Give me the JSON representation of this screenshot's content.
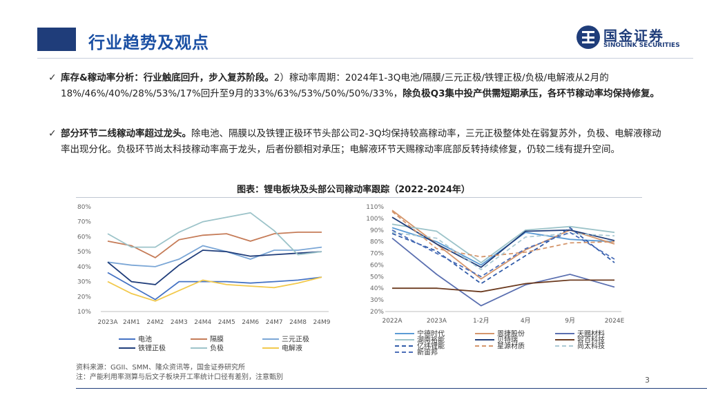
{
  "header": {
    "title": "行业趋势及观点"
  },
  "logo": {
    "cn": "国金证券",
    "en": "SINOLINK SECURITIES"
  },
  "bullets": [
    {
      "bold_lead": "库存&稼动率分析：行业触底回升，步入复苏阶段。",
      "body": "2）稼动率周期：2024年1-3Q电池/隔膜/三元正极/铁锂正极/负极/电解液从2月的18%/46%/40%/28%/53%/17%回升至9月的33%/63%/53%/50%/50%/33%，",
      "bold_tail": "除负极Q3集中投产供需短期承压，各环节稼动率均保持修复。"
    },
    {
      "bold_lead": "部分环节二线稼动率超过龙头。",
      "body": "除电池、隔膜以及铁锂正极环节头部公司2-3Q均保持较高稼动率，三元正极整体处在弱复苏外，负极、电解液稼动率出现分化。负极环节尚太科技稼动率高于龙头，后者份额相对承压；电解液环节天赐稼动率底部反转持续修复，仍较二线有提升空间。",
      "bold_tail": ""
    }
  ],
  "figure": {
    "title": "图表：锂电板块及头部公司稼动率跟踪（2022-2024年）"
  },
  "chart_data": [
    {
      "type": "line",
      "categories": [
        "2023A",
        "24M1",
        "24M2",
        "24M3",
        "24M4",
        "24M5",
        "24M6",
        "24M7",
        "24M8",
        "24M9"
      ],
      "ylim": [
        10,
        80
      ],
      "yticks": [
        "10%",
        "20%",
        "30%",
        "40%",
        "50%",
        "60%",
        "70%",
        "80%"
      ],
      "series": [
        {
          "name": "电池",
          "color": "#4472c4",
          "values": [
            36,
            27,
            18,
            30,
            30,
            30,
            29,
            30,
            31,
            33
          ]
        },
        {
          "name": "隔膜",
          "color": "#c57b57",
          "values": [
            57,
            54,
            46,
            58,
            61,
            62,
            57,
            62,
            63,
            63
          ]
        },
        {
          "name": "三元正极",
          "color": "#7aa6d6",
          "values": [
            43,
            41,
            40,
            45,
            54,
            50,
            45,
            51,
            51,
            53
          ]
        },
        {
          "name": "铁锂正极",
          "color": "#1f3d7a",
          "values": [
            43,
            30,
            28,
            41,
            51,
            50,
            47,
            48,
            49,
            50
          ]
        },
        {
          "name": "负极",
          "color": "#9cc3c9",
          "values": [
            62,
            53,
            53,
            63,
            70,
            73,
            76,
            64,
            48,
            50
          ]
        },
        {
          "name": "电解液",
          "color": "#f2c94c",
          "values": [
            30,
            22,
            17,
            24,
            31,
            28,
            27,
            26,
            29,
            33
          ]
        }
      ]
    },
    {
      "type": "line",
      "categories": [
        "2022A",
        "2023A",
        "1-2月",
        "4月",
        "9月",
        "2024E"
      ],
      "ylim": [
        20,
        110
      ],
      "yticks": [
        "20%",
        "30%",
        "40%",
        "50%",
        "60%",
        "70%",
        "80%",
        "90%",
        "100%",
        "110%"
      ],
      "series": [
        {
          "name": "宁德时代",
          "color": "#5b9bd5",
          "dash": "",
          "values": [
            92,
            80,
            60,
            88,
            82,
            80
          ]
        },
        {
          "name": "恩捷股份",
          "color": "#d4956b",
          "dash": "",
          "values": [
            107,
            78,
            48,
            73,
            90,
            78
          ]
        },
        {
          "name": "天赐材料",
          "color": "#5a6fb0",
          "dash": "",
          "values": [
            83,
            52,
            25,
            43,
            52,
            41
          ]
        },
        {
          "name": "湖南裕能",
          "color": "#9cc3c9",
          "dash": "",
          "values": [
            95,
            89,
            62,
            90,
            93,
            88
          ]
        },
        {
          "name": "贝特瑞",
          "color": "#1f3d7a",
          "dash": "",
          "values": [
            101,
            78,
            58,
            89,
            90,
            81
          ]
        },
        {
          "name": "容百科技",
          "color": "#6b3a1f",
          "dash": "",
          "values": [
            40,
            40,
            37,
            44,
            47,
            47
          ]
        },
        {
          "name": "亿纬锂能",
          "color": "#2f5aa8",
          "dash": "6,4",
          "values": [
            87,
            72,
            44,
            68,
            92,
            62
          ]
        },
        {
          "name": "星源材质",
          "color": "#d4956b",
          "dash": "6,4",
          "values": [
            106,
            74,
            67,
            71,
            79,
            80
          ]
        },
        {
          "name": "尚太科技",
          "color": "#aac9d4",
          "dash": "6,4",
          "values": [
            88,
            83,
            56,
            84,
            87,
            85
          ]
        },
        {
          "name": "新宙邦",
          "color": "#4a6db8",
          "dash": "6,4",
          "values": [
            90,
            70,
            50,
            74,
            88,
            65
          ]
        }
      ]
    }
  ],
  "source": {
    "line1": "资料来源：GGII、SMM、隆众资讯等，国金证券研究所",
    "line2": "注：产能利用率测算与后文子板块开工率统计口径有差别，注意甄别"
  },
  "page_number": "3"
}
